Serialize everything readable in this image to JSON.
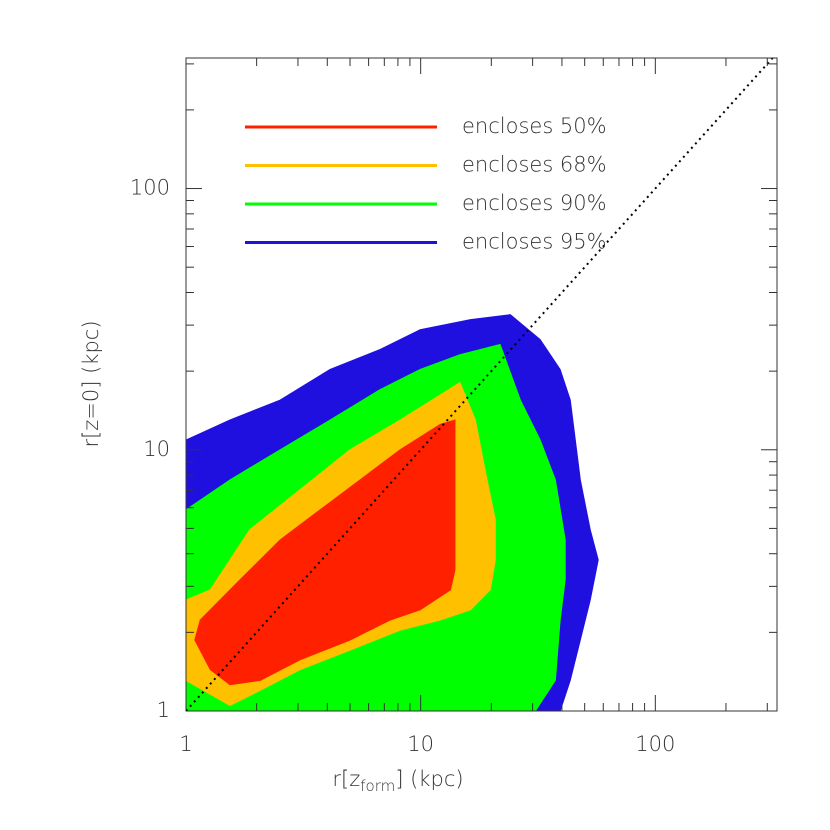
{
  "chart_data": {
    "type": "contour",
    "xlabel": {
      "main": "r[z",
      "sub": "form",
      "end": "] (kpc)"
    },
    "ylabel": "r[z=0] (kpc)",
    "log_x": true,
    "log_y": true,
    "xlim": [
      1,
      330
    ],
    "ylim": [
      1,
      316
    ],
    "xticks": [
      1,
      10,
      100
    ],
    "yticks": [
      1,
      10,
      100
    ],
    "xminor_ticks": [
      2,
      3,
      4,
      5,
      6,
      7,
      8,
      9,
      20,
      30,
      40,
      50,
      60,
      70,
      80,
      90,
      200,
      300
    ],
    "yminor_ticks": [
      2,
      3,
      4,
      5,
      6,
      7,
      8,
      9,
      20,
      30,
      40,
      50,
      60,
      70,
      80,
      90,
      200,
      300
    ],
    "reference_line": {
      "x": [
        1,
        316
      ],
      "y": [
        1,
        316
      ],
      "color": "#000000"
    },
    "series": [
      {
        "name": "encloses 95%",
        "color": "#2010e0",
        "x": [
          1,
          1,
          1.54,
          2.52,
          4.11,
          6.72,
          9.95,
          16.3,
          24.1,
          32.3,
          39.3,
          43.4,
          45.6,
          47.9,
          52.8,
          57.1,
          52.8,
          47.9,
          43.4,
          39.3
        ],
        "values": [
          1,
          10.9,
          13.0,
          15.5,
          20.3,
          24.2,
          28.8,
          31.5,
          32.9,
          26.4,
          20.3,
          15.5,
          10.9,
          7.67,
          4.94,
          3.79,
          2.66,
          1.87,
          1.31,
          1
        ]
      },
      {
        "name": "encloses 90%",
        "color": "#00ff00",
        "x": [
          1,
          1,
          1.54,
          2.52,
          4.11,
          6.72,
          9.95,
          14.7,
          21.8,
          26.6,
          32.3,
          37.5,
          41.3,
          41.3,
          39.3,
          37.5,
          30.8
        ],
        "values": [
          1,
          5.89,
          7.67,
          10,
          13.0,
          17.0,
          20.3,
          23.1,
          25.3,
          15.5,
          10.9,
          7.67,
          4.52,
          3.18,
          2.23,
          1.31,
          1
        ]
      },
      {
        "name": "encloses 68%",
        "color": "#ffc000",
        "x": [
          1,
          1,
          1.27,
          1.87,
          3.06,
          5.0,
          8.18,
          12.1,
          14.7,
          17.1,
          18.8,
          20.8,
          20.8,
          19.8,
          16.3,
          12.1,
          8.18,
          5.0,
          3.06,
          2.07,
          1.54,
          1
        ],
        "values": [
          1.57,
          2.66,
          2.91,
          4.94,
          7.03,
          10,
          13.0,
          16.2,
          18.1,
          13.0,
          8.38,
          5.39,
          3.79,
          2.91,
          2.44,
          2.23,
          2.04,
          1.71,
          1.44,
          1.2,
          1.05,
          1.31
        ]
      },
      {
        "name": "encloses 50%",
        "color": "#ff2000",
        "x": [
          1.09,
          1.15,
          1.7,
          2.52,
          3.73,
          5.52,
          8.18,
          12.1,
          14.0,
          14.0,
          14.0,
          14.0,
          13.4,
          9.95,
          7.41,
          5.0,
          3.06,
          2.07,
          1.54,
          1.27
        ],
        "values": [
          1.87,
          2.23,
          3.18,
          4.52,
          5.89,
          7.67,
          10,
          12.5,
          13.0,
          8.38,
          5.39,
          3.47,
          2.91,
          2.44,
          2.23,
          1.87,
          1.57,
          1.31,
          1.26,
          1.44
        ]
      }
    ]
  }
}
